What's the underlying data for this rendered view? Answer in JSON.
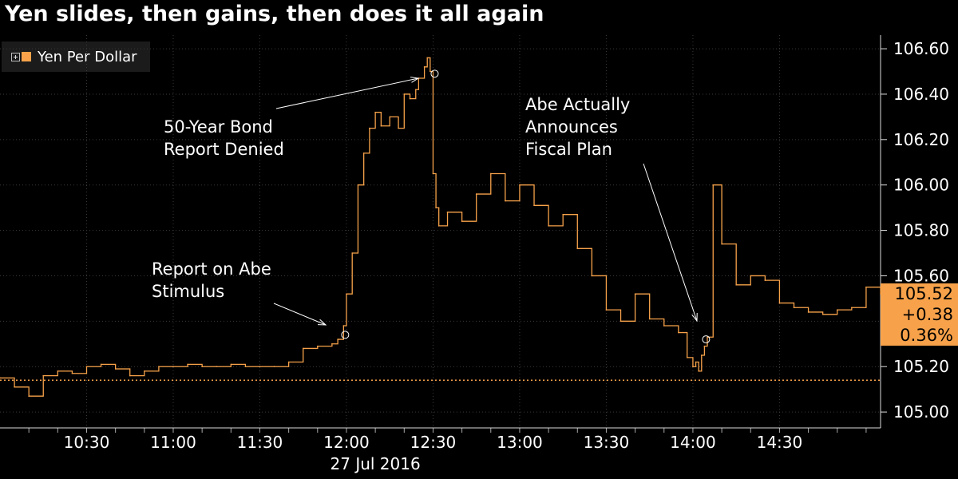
{
  "chart_data": {
    "type": "line",
    "title": "Yen slides, then gains, then does it all again",
    "legend": [
      {
        "name": "Yen Per Dollar",
        "color": "#f7a24a"
      }
    ],
    "legend_position": "top-left",
    "x_ticks": [
      "10:30",
      "11:00",
      "11:30",
      "12:00",
      "12:30",
      "13:00",
      "13:30",
      "14:00",
      "14:30"
    ],
    "x_date_label": "27 Jul 2016",
    "y_ticks": [
      "105.00",
      "105.20",
      "105.40",
      "105.60",
      "105.80",
      "106.00",
      "106.20",
      "106.40",
      "106.60"
    ],
    "ylim": [
      104.93,
      106.66
    ],
    "xlim": [
      "10:00",
      "15:05"
    ],
    "grid": true,
    "reference_line": 105.14,
    "last_value": "105.52",
    "change": "+0.38",
    "change_pct": "0.36%",
    "series": [
      {
        "name": "Yen Per Dollar",
        "x": [
          "10:00",
          "10:05",
          "10:10",
          "10:15",
          "10:20",
          "10:25",
          "10:30",
          "10:35",
          "10:40",
          "10:45",
          "10:50",
          "10:55",
          "11:00",
          "11:05",
          "11:10",
          "11:15",
          "11:20",
          "11:25",
          "11:30",
          "11:35",
          "11:40",
          "11:45",
          "11:50",
          "11:55",
          "11:57",
          "11:59",
          "12:00",
          "12:02",
          "12:04",
          "12:06",
          "12:08",
          "12:10",
          "12:12",
          "12:15",
          "12:18",
          "12:20",
          "12:22",
          "12:24",
          "12:25",
          "12:27",
          "12:28",
          "12:29",
          "12:30",
          "12:31",
          "12:32",
          "12:35",
          "12:40",
          "12:45",
          "12:50",
          "12:55",
          "13:00",
          "13:05",
          "13:10",
          "13:15",
          "13:20",
          "13:25",
          "13:30",
          "13:35",
          "13:40",
          "13:45",
          "13:50",
          "13:55",
          "13:58",
          "14:00",
          "14:01",
          "14:02",
          "14:03",
          "14:04",
          "14:05",
          "14:07",
          "14:10",
          "14:15",
          "14:20",
          "14:25",
          "14:30",
          "14:35",
          "14:40",
          "14:45",
          "14:50",
          "14:55",
          "15:00",
          "15:05"
        ],
        "values": [
          105.15,
          105.11,
          105.07,
          105.16,
          105.18,
          105.17,
          105.2,
          105.21,
          105.19,
          105.16,
          105.18,
          105.2,
          105.2,
          105.21,
          105.2,
          105.2,
          105.21,
          105.2,
          105.2,
          105.2,
          105.22,
          105.28,
          105.29,
          105.3,
          105.32,
          105.38,
          105.52,
          105.7,
          106.0,
          106.14,
          106.25,
          106.32,
          106.26,
          106.3,
          106.25,
          106.4,
          106.38,
          106.42,
          106.47,
          106.52,
          106.56,
          106.5,
          106.05,
          105.9,
          105.82,
          105.88,
          105.84,
          105.96,
          106.05,
          105.93,
          106.0,
          105.91,
          105.82,
          105.87,
          105.72,
          105.6,
          105.45,
          105.4,
          105.52,
          105.41,
          105.38,
          105.35,
          105.24,
          105.2,
          105.22,
          105.18,
          105.25,
          105.29,
          105.33,
          106.0,
          105.74,
          105.56,
          105.6,
          105.58,
          105.48,
          105.46,
          105.44,
          105.43,
          105.45,
          105.46,
          105.55,
          105.52
        ]
      }
    ],
    "annotations": [
      {
        "text": "50-Year Bond",
        "text2": "Report Denied"
      },
      {
        "text": "Report on Abe",
        "text2": "Stimulus"
      },
      {
        "text": "Abe Actually",
        "text2": "Announces",
        "text3": "Fiscal Plan"
      }
    ]
  }
}
